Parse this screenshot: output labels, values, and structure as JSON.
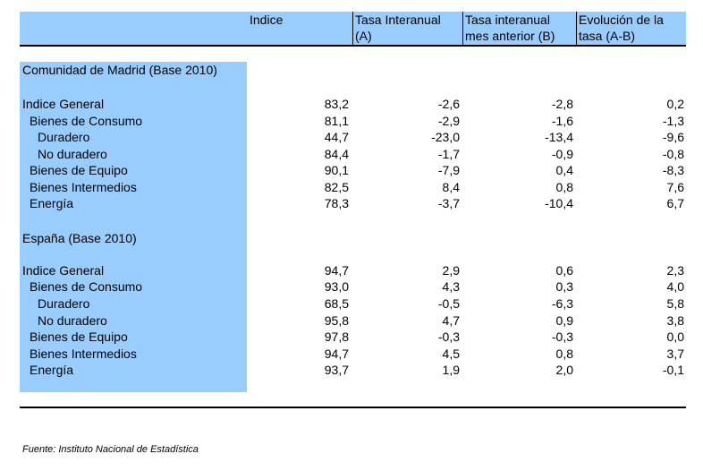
{
  "header": {
    "col1": "Indice",
    "col2_line1": "Tasa Interanual",
    "col2_line2": "(A)",
    "col3_line1": "Tasa interanual",
    "col3_line2": "mes anterior (B)",
    "col4_line1": "Evolución de la",
    "col4_line2": "tasa (A-B)"
  },
  "sections": [
    {
      "title": "Comunidad de Madrid (Base 2010)",
      "rows": [
        {
          "label": "Indice General",
          "indice": "83,2",
          "tasa_a": "-2,6",
          "tasa_b": "-2,8",
          "evolucion": "0,2"
        },
        {
          "label": "Bienes de Consumo",
          "indice": "81,1",
          "tasa_a": "-2,9",
          "tasa_b": "-1,6",
          "evolucion": "-1,3"
        },
        {
          "label": "Duradero",
          "indice": "44,7",
          "tasa_a": "-23,0",
          "tasa_b": "-13,4",
          "evolucion": "-9,6"
        },
        {
          "label": "No duradero",
          "indice": "84,4",
          "tasa_a": "-1,7",
          "tasa_b": "-0,9",
          "evolucion": "-0,8"
        },
        {
          "label": "Bienes de Equipo",
          "indice": "90,1",
          "tasa_a": "-7,9",
          "tasa_b": "0,4",
          "evolucion": "-8,3"
        },
        {
          "label": "Bienes Intermedios",
          "indice": "82,5",
          "tasa_a": "8,4",
          "tasa_b": "0,8",
          "evolucion": "7,6"
        },
        {
          "label": "Energía",
          "indice": "78,3",
          "tasa_a": "-3,7",
          "tasa_b": "-10,4",
          "evolucion": "6,7"
        }
      ]
    },
    {
      "title": "España (Base 2010)",
      "rows": [
        {
          "label": "Indice General",
          "indice": "94,7",
          "tasa_a": "2,9",
          "tasa_b": "0,6",
          "evolucion": "2,3"
        },
        {
          "label": "Bienes de Consumo",
          "indice": "93,0",
          "tasa_a": "4,3",
          "tasa_b": "0,3",
          "evolucion": "4,0"
        },
        {
          "label": "Duradero",
          "indice": "68,5",
          "tasa_a": "-0,5",
          "tasa_b": "-6,3",
          "evolucion": "5,8"
        },
        {
          "label": "No duradero",
          "indice": "95,8",
          "tasa_a": "4,7",
          "tasa_b": "0,9",
          "evolucion": "3,8"
        },
        {
          "label": "Bienes de Equipo",
          "indice": "97,8",
          "tasa_a": "-0,3",
          "tasa_b": "-0,3",
          "evolucion": "0,0"
        },
        {
          "label": "Bienes Intermedios",
          "indice": "94,7",
          "tasa_a": "4,5",
          "tasa_b": "0,8",
          "evolucion": "3,7"
        },
        {
          "label": "Energía",
          "indice": "93,7",
          "tasa_a": "1,9",
          "tasa_b": "2,0",
          "evolucion": "-0,1"
        }
      ]
    }
  ],
  "footer": {
    "source": "Fuente: Instituto Nacional de Estadística"
  },
  "colors": {
    "header_bg": "#99ccff",
    "sidebar_bg": "#99ccff",
    "rule": "#000000"
  }
}
